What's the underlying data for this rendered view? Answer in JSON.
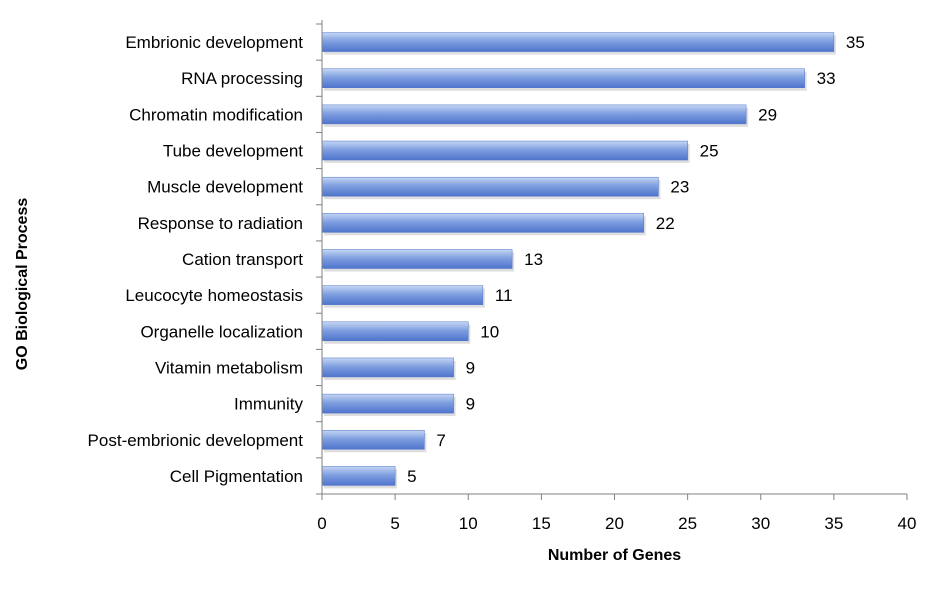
{
  "chart_data": {
    "type": "bar",
    "orientation": "horizontal",
    "title": "",
    "xlabel": "Number of Genes",
    "ylabel": "GO Biological Process",
    "categories": [
      "Embrionic development",
      "RNA processing",
      "Chromatin modification",
      "Tube development",
      "Muscle development",
      "Response to radiation",
      "Cation transport",
      "Leucocyte homeostasis",
      "Organelle localization",
      "Vitamin metabolism",
      "Immunity",
      "Post-embrionic development",
      "Cell Pigmentation"
    ],
    "values": [
      35,
      33,
      29,
      25,
      23,
      22,
      13,
      11,
      10,
      9,
      9,
      7,
      5
    ],
    "xlim": [
      0,
      40
    ],
    "xticks": [
      0,
      5,
      10,
      15,
      20,
      25,
      30,
      35,
      40
    ],
    "grid": false,
    "legend": "none",
    "colors": {
      "bar_light": "#c5d6f3",
      "bar_mid": "#7f9fe0",
      "bar_dark": "#4f74cc",
      "axis": "#808080"
    }
  }
}
